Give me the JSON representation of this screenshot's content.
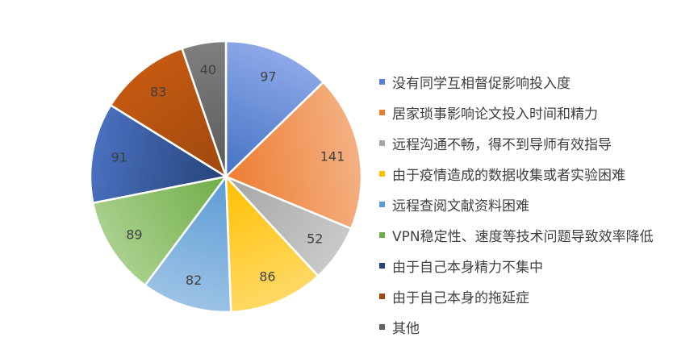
{
  "chart_data": {
    "type": "pie",
    "categories": [
      "没有同学互相督促影响投入度",
      "居家琐事影响论文投入时间和精力",
      "远程沟通不畅，得不到导师有效指导",
      "由于疫情造成的数据收集或者实验困难",
      "远程查阅文献资料困难",
      "VPN稳定性、速度等技术问题导致效率降低",
      "由于自己本身精力不集中",
      "由于自己本身的拖延症",
      "其他"
    ],
    "values": [
      97,
      141,
      52,
      86,
      82,
      89,
      91,
      83,
      40
    ],
    "colors": [
      "#5b7fd4",
      "#ed7d31",
      "#a5a5a5",
      "#ffc000",
      "#5b9bd5",
      "#70ad47",
      "#264478",
      "#9e480e",
      "#636363"
    ],
    "gradients": [
      [
        "#8ea9e8",
        "#4472c4"
      ],
      [
        "#f4b183",
        "#ed7d31"
      ],
      [
        "#c9c9c9",
        "#a5a5a5"
      ],
      [
        "#ffd966",
        "#ffc000"
      ],
      [
        "#9dc3e6",
        "#5b9bd5"
      ],
      [
        "#a9d18e",
        "#70ad47"
      ],
      [
        "#4a70c0",
        "#264478"
      ],
      [
        "#c55a11",
        "#9e480e"
      ],
      [
        "#7f7f7f",
        "#595959"
      ]
    ],
    "start_angle": "12 o'clock",
    "direction": "clockwise",
    "legend_position": "right",
    "show_data_labels": true
  }
}
